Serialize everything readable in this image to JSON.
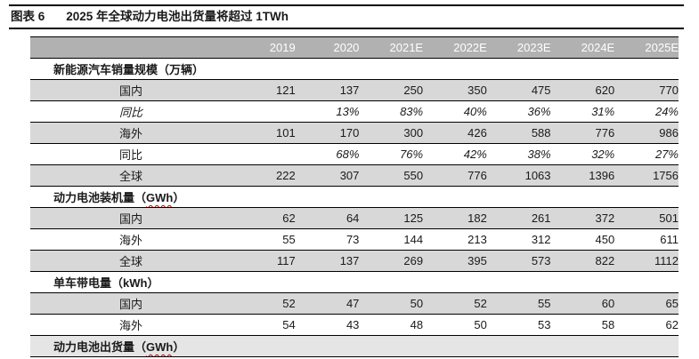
{
  "header": {
    "figure_label": "图表 6",
    "title": "2025 年全球动力电池出货量将超过 1TWh"
  },
  "colors": {
    "header_bg": "#b1b1b1",
    "header_text": "#ffffff",
    "row_shaded_bg": "#d8d8d8",
    "section_shaded_bg": "#e5e5e5",
    "border": "#000000",
    "squiggle": "#c00000"
  },
  "table": {
    "label_column_header": "",
    "columns": [
      "2019",
      "2020",
      "2021E",
      "2022E",
      "2023E",
      "2024E",
      "2025E"
    ],
    "sections": [
      {
        "title_pre": "新能源汽车销量规模（万辆）",
        "title_unit": "",
        "title_post": "",
        "shaded": false,
        "rows": [
          {
            "label": "国内",
            "shaded": true,
            "italic_label": false,
            "italic_values": false,
            "values": [
              "121",
              "137",
              "250",
              "350",
              "475",
              "620",
              "770"
            ]
          },
          {
            "label": "同比",
            "shaded": false,
            "italic_label": true,
            "italic_values": true,
            "values": [
              "",
              "13%",
              "83%",
              "40%",
              "36%",
              "31%",
              "24%"
            ]
          },
          {
            "label": "海外",
            "shaded": true,
            "italic_label": false,
            "italic_values": false,
            "values": [
              "101",
              "170",
              "300",
              "426",
              "588",
              "776",
              "986"
            ]
          },
          {
            "label": "同比",
            "shaded": false,
            "italic_label": false,
            "italic_values": true,
            "values": [
              "",
              "68%",
              "76%",
              "42%",
              "38%",
              "32%",
              "27%"
            ]
          },
          {
            "label": "全球",
            "shaded": true,
            "italic_label": false,
            "italic_values": false,
            "values": [
              "222",
              "307",
              "550",
              "776",
              "1063",
              "1396",
              "1756"
            ]
          }
        ]
      },
      {
        "title_pre": "动力电池装机量（",
        "title_unit": "GWh",
        "title_post": "）",
        "shaded": false,
        "rows": [
          {
            "label": "国内",
            "shaded": true,
            "italic_label": false,
            "italic_values": false,
            "values": [
              "62",
              "64",
              "125",
              "182",
              "261",
              "372",
              "501"
            ]
          },
          {
            "label": "海外",
            "shaded": false,
            "italic_label": false,
            "italic_values": false,
            "values": [
              "55",
              "73",
              "144",
              "213",
              "312",
              "450",
              "611"
            ]
          },
          {
            "label": "全球",
            "shaded": true,
            "italic_label": false,
            "italic_values": false,
            "values": [
              "117",
              "137",
              "269",
              "395",
              "573",
              "822",
              "1112"
            ]
          }
        ]
      },
      {
        "title_pre": "单车带电量（kWh）",
        "title_unit": "",
        "title_post": "",
        "shaded": false,
        "rows": [
          {
            "label": "国内",
            "shaded": true,
            "italic_label": false,
            "italic_values": false,
            "values": [
              "52",
              "47",
              "50",
              "52",
              "55",
              "60",
              "65"
            ]
          },
          {
            "label": "海外",
            "shaded": false,
            "italic_label": false,
            "italic_values": false,
            "values": [
              "54",
              "43",
              "48",
              "50",
              "53",
              "58",
              "62"
            ]
          }
        ]
      },
      {
        "title_pre": "动力电池出货量（",
        "title_unit": "GWh",
        "title_post": "）",
        "shaded": true,
        "rows": []
      }
    ]
  }
}
